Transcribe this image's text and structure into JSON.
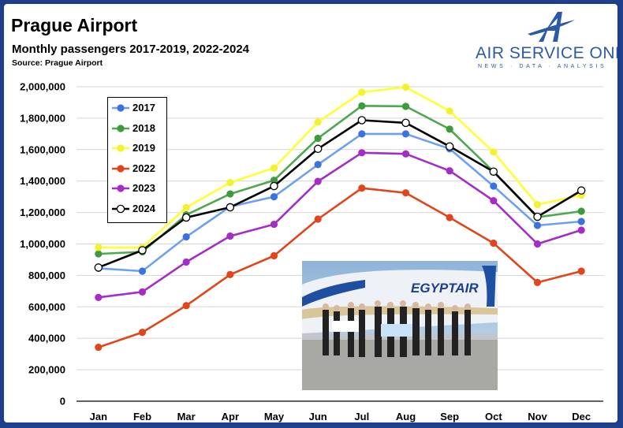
{
  "header": {
    "title": "Prague Airport",
    "subtitle": "Monthly passengers 2017-2019, 2022-2024",
    "source": "Source: Prague Airport"
  },
  "brand": {
    "name": "AIR SERVICE ONE",
    "tagline": "NEWS · DATA · ANALYSIS",
    "color": "#2c5aa8"
  },
  "photo": {
    "sign_text": "EGYPTAIR"
  },
  "chart_data": {
    "type": "line",
    "title": "Monthly passengers 2017-2019, 2022-2024",
    "xlabel": "",
    "ylabel": "",
    "ylim": [
      0,
      2000000
    ],
    "yticks": [
      "0",
      "200,000",
      "400,000",
      "600,000",
      "800,000",
      "1,000,000",
      "1,200,000",
      "1,400,000",
      "1,600,000",
      "1,800,000",
      "2,000,000"
    ],
    "categories": [
      "Jan",
      "Feb",
      "Mar",
      "Apr",
      "May",
      "Jun",
      "Jul",
      "Aug",
      "Sep",
      "Oct",
      "Nov",
      "Dec"
    ],
    "grid": "horizontal",
    "legend_position": "top-left",
    "series": [
      {
        "name": "2017",
        "color": "#6fa0f0",
        "marker": "#3a73e0",
        "values": [
          845000,
          827000,
          1045000,
          1237000,
          1300000,
          1505000,
          1700000,
          1700000,
          1605000,
          1368000,
          1118000,
          1143000
        ]
      },
      {
        "name": "2018",
        "color": "#4ea84e",
        "marker": "#3d9a3d",
        "values": [
          937000,
          950000,
          1185000,
          1318000,
          1405000,
          1672000,
          1878000,
          1875000,
          1730000,
          1460000,
          1170000,
          1208000
        ]
      },
      {
        "name": "2019",
        "color": "#ffff33",
        "marker": "#f2f230",
        "values": [
          978000,
          978000,
          1232000,
          1390000,
          1483000,
          1775000,
          1965000,
          1997000,
          1845000,
          1585000,
          1250000,
          1310000
        ]
      },
      {
        "name": "2022",
        "color": "#e0451b",
        "marker": "#e0451b",
        "values": [
          343000,
          438000,
          608000,
          805000,
          925000,
          1158000,
          1355000,
          1325000,
          1168000,
          1005000,
          755000,
          827000
        ]
      },
      {
        "name": "2023",
        "color": "#a32dc6",
        "marker": "#a32dc6",
        "values": [
          660000,
          695000,
          885000,
          1050000,
          1125000,
          1398000,
          1580000,
          1573000,
          1465000,
          1275000,
          1000000,
          1088000
        ]
      },
      {
        "name": "2024",
        "color": "#000000",
        "marker": "#ffffff",
        "values": [
          850000,
          960000,
          1168000,
          1233000,
          1368000,
          1605000,
          1787000,
          1770000,
          1620000,
          1460000,
          1173000,
          1340000
        ]
      }
    ]
  }
}
